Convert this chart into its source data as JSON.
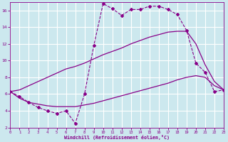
{
  "background_color": "#cce8ee",
  "grid_color": "#ffffff",
  "line_color": "#880088",
  "xlabel": "Windchill (Refroidissement éolien,°C)",
  "xlim": [
    0,
    23
  ],
  "ylim": [
    2,
    17
  ],
  "xticks": [
    0,
    1,
    2,
    3,
    4,
    5,
    6,
    7,
    8,
    9,
    10,
    11,
    12,
    13,
    14,
    15,
    16,
    17,
    18,
    19,
    20,
    21,
    22,
    23
  ],
  "yticks": [
    2,
    4,
    6,
    8,
    10,
    12,
    14,
    16
  ],
  "s1_x": [
    0,
    1,
    2,
    3,
    4,
    5,
    6,
    7,
    8,
    9,
    10,
    11,
    12,
    13,
    14,
    15,
    16,
    17,
    18,
    19,
    20,
    21,
    22,
    23
  ],
  "s1_y": [
    6.3,
    5.7,
    5.0,
    4.4,
    4.0,
    3.7,
    4.0,
    2.5,
    6.0,
    11.8,
    16.8,
    16.2,
    15.4,
    16.1,
    16.1,
    16.5,
    16.5,
    16.1,
    15.5,
    13.6,
    9.7,
    8.6,
    6.3,
    6.5
  ],
  "s2_x": [
    0,
    1,
    2,
    3,
    4,
    5,
    6,
    7,
    8,
    9,
    10,
    11,
    12,
    13,
    14,
    15,
    16,
    17,
    18,
    19,
    20,
    21,
    22,
    23
  ],
  "s2_y": [
    6.3,
    6.5,
    7.0,
    7.5,
    8.0,
    8.5,
    9.0,
    9.3,
    9.7,
    10.2,
    10.7,
    11.1,
    11.5,
    12.0,
    12.4,
    12.8,
    13.1,
    13.4,
    13.5,
    13.5,
    12.0,
    9.5,
    7.5,
    6.5
  ],
  "s3_x": [
    0,
    1,
    2,
    3,
    4,
    5,
    6,
    7,
    8,
    9,
    10,
    11,
    12,
    13,
    14,
    15,
    16,
    17,
    18,
    19,
    20,
    21,
    22,
    23
  ],
  "s3_y": [
    6.3,
    5.5,
    5.0,
    4.8,
    4.6,
    4.5,
    4.5,
    4.5,
    4.7,
    4.9,
    5.2,
    5.5,
    5.8,
    6.1,
    6.4,
    6.7,
    7.0,
    7.3,
    7.7,
    8.0,
    8.2,
    8.0,
    7.0,
    6.5
  ]
}
